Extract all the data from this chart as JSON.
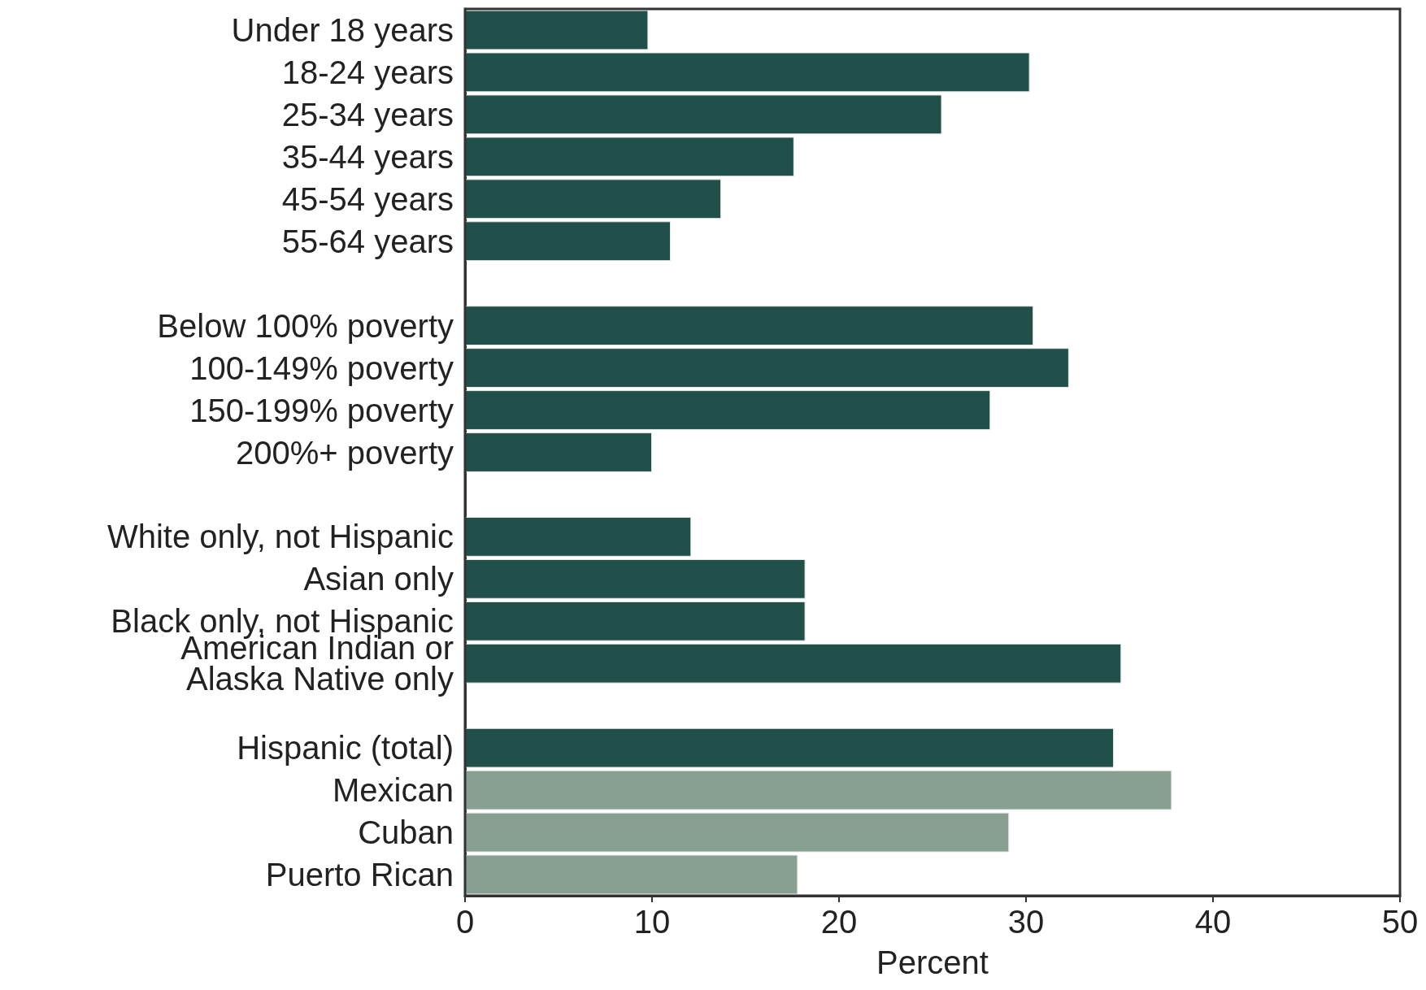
{
  "chart_data": {
    "type": "bar",
    "orientation": "horizontal",
    "xlabel": "Percent",
    "categories": [
      "Under 18 years",
      "18-24 years",
      "25-34 years",
      "35-44 years",
      "45-54 years",
      "55-64 years",
      null,
      "Below 100% poverty",
      "100-149% poverty",
      "150-199% poverty",
      "200%+ poverty",
      null,
      "White only, not Hispanic",
      "Asian only",
      "Black only, not Hispanic",
      "American Indian or\nAlaska Native only",
      null,
      "Hispanic (total)",
      "Mexican",
      "Cuban",
      "Puerto Rican"
    ],
    "values": [
      9.8,
      30.2,
      25.5,
      17.6,
      13.7,
      11.0,
      null,
      30.4,
      32.3,
      28.1,
      10.0,
      null,
      12.1,
      18.2,
      18.2,
      35.1,
      null,
      34.7,
      37.8,
      29.1,
      17.8
    ],
    "colors": [
      "#21504b",
      "#21504b",
      "#21504b",
      "#21504b",
      "#21504b",
      "#21504b",
      "#21504b",
      "#21504b",
      "#21504b",
      "#21504b",
      "#21504b",
      "#21504b",
      "#21504b",
      "#21504b",
      "#21504b",
      "#21504b",
      "#21504b",
      "#21504b",
      "#87a092",
      "#87a092",
      "#87a092"
    ],
    "xlim": [
      0,
      50
    ],
    "xticks": [
      0,
      10,
      20,
      30,
      40,
      50
    ],
    "grid": false
  }
}
